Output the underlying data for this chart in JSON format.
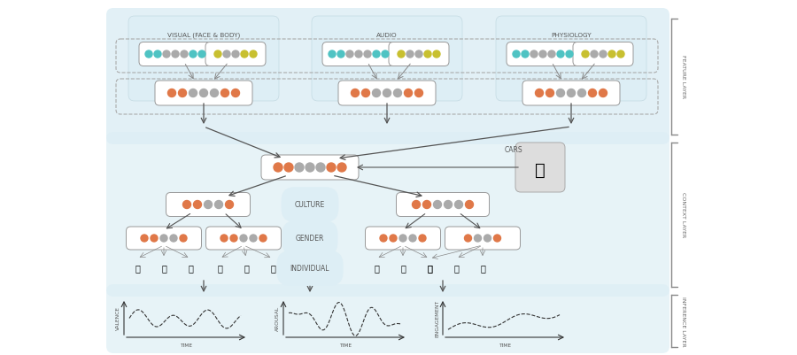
{
  "bg_color": "#ffffff",
  "light_blue_bg": "#ddeef5",
  "dot_colors": {
    "teal": "#4fc3c3",
    "yellow": "#c8c030",
    "orange": "#e07848",
    "gray": "#aaaaaa"
  },
  "section_labels": [
    "VISUAL (FACE & BODY)",
    "AUDIO",
    "PHYSIOLOGY"
  ],
  "context_labels": [
    "CULTURE",
    "GENDER",
    "INDIVIDUAL",
    "CARS"
  ],
  "inference_labels": [
    "VALENCE",
    "AROUSAL",
    "ENGAGEMENT"
  ],
  "time_label": "TIME",
  "layer_labels": [
    "FEATURE LAYER",
    "CONTEXT LAYER",
    "INFERENCE LAYER"
  ]
}
